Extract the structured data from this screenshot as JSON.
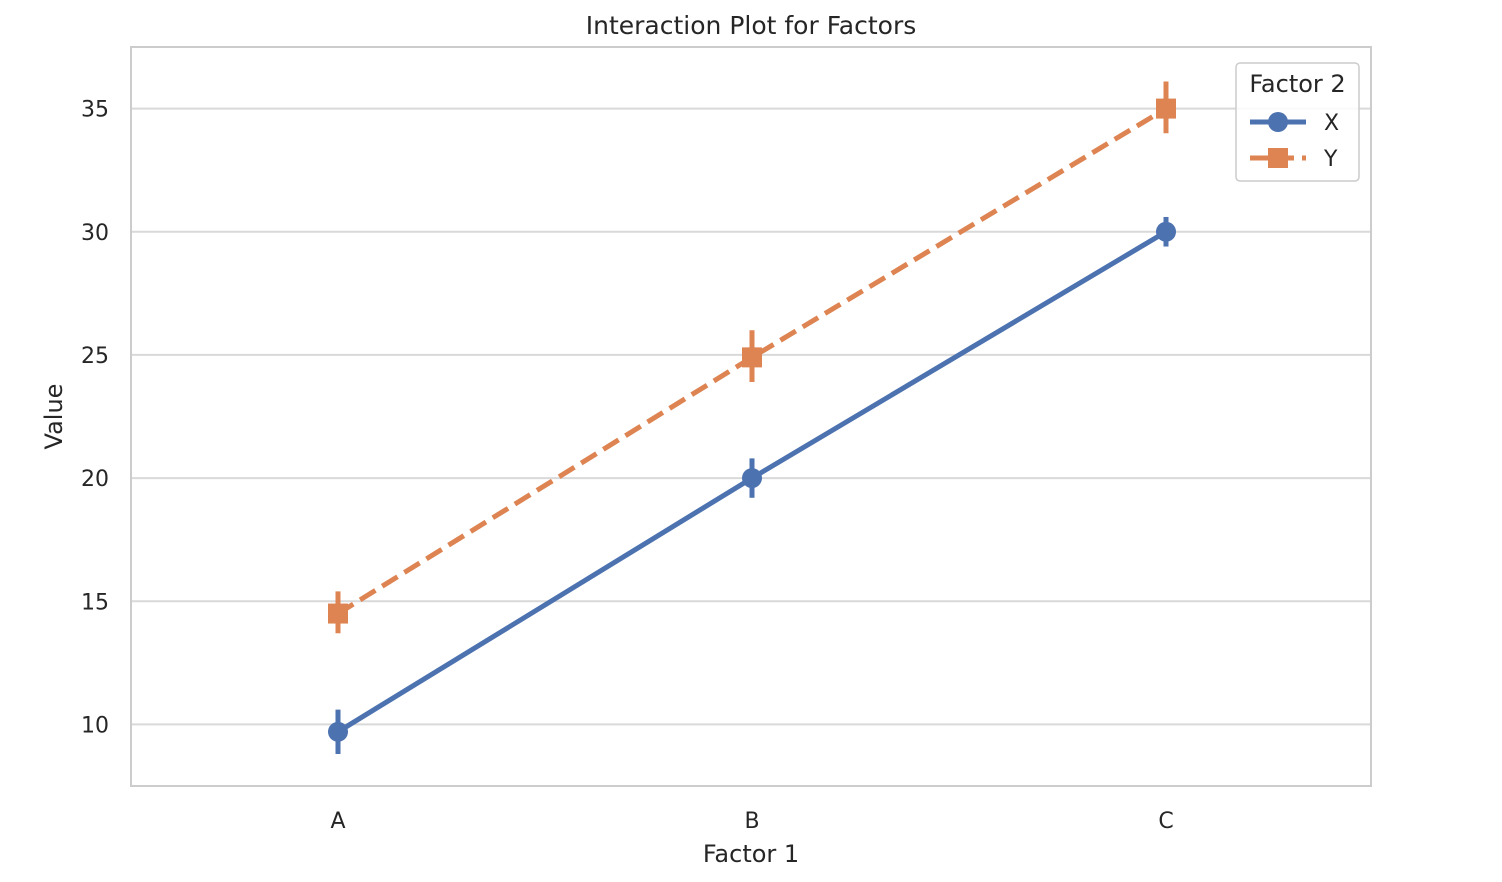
{
  "chart_data": {
    "type": "line",
    "title": "Interaction Plot for Factors",
    "xlabel": "Factor 1",
    "ylabel": "Value",
    "categories": [
      "A",
      "B",
      "C"
    ],
    "ylim": [
      7.5,
      37.5
    ],
    "yticks": [
      10,
      15,
      20,
      25,
      30,
      35
    ],
    "ytick_labels": [
      "10",
      "15",
      "20",
      "25",
      "30",
      "35"
    ],
    "grid": true,
    "legend": {
      "title": "Factor 2",
      "placement": "top-right"
    },
    "series": [
      {
        "name": "X",
        "color": "#4c72b0",
        "marker": "circle",
        "linestyle": "solid",
        "values": [
          9.7,
          20.0,
          30.0
        ],
        "ci_low": [
          8.8,
          19.2,
          29.4
        ],
        "ci_high": [
          10.6,
          20.8,
          30.6
        ]
      },
      {
        "name": "Y",
        "color": "#dd8452",
        "marker": "square",
        "linestyle": "dashed",
        "values": [
          14.5,
          24.9,
          35.0
        ],
        "ci_low": [
          13.7,
          23.9,
          34.0
        ],
        "ci_high": [
          15.4,
          26.0,
          36.1
        ]
      }
    ]
  }
}
